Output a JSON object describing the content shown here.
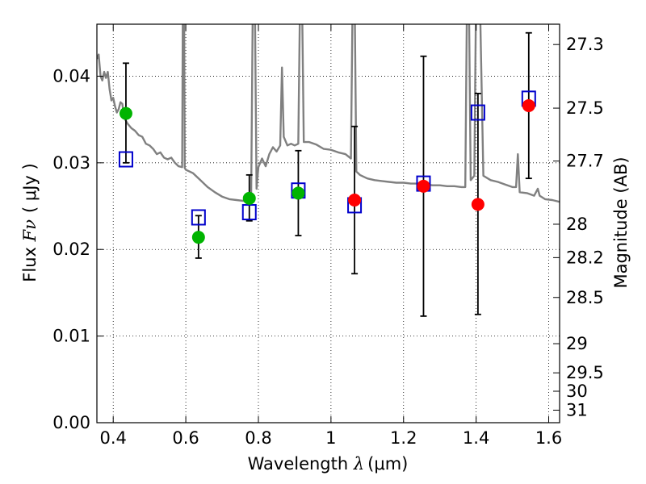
{
  "chart_data": {
    "type": "scatter",
    "title": "",
    "xlabel": {
      "prefix": "Wavelength ",
      "symbol": "λ",
      "unit": "(μm)"
    },
    "ylabel": {
      "prefix": "Flux ",
      "symbol": "Fν",
      "unit": "( μJy )"
    },
    "y2label": "Magnitude (AB)",
    "xlim": [
      0.355,
      1.63
    ],
    "ylim": [
      0.0,
      0.046
    ],
    "grid": true,
    "x_ticks": [
      {
        "value": 0.4,
        "label": "0.4"
      },
      {
        "value": 0.6,
        "label": "0.6"
      },
      {
        "value": 0.8,
        "label": "0.8"
      },
      {
        "value": 1.0,
        "label": "1"
      },
      {
        "value": 1.2,
        "label": "1.2"
      },
      {
        "value": 1.4,
        "label": "1.4"
      },
      {
        "value": 1.6,
        "label": "1.6"
      }
    ],
    "y_ticks": [
      {
        "value": 0.0,
        "label": "0.00"
      },
      {
        "value": 0.01,
        "label": "0.01"
      },
      {
        "value": 0.02,
        "label": "0.02"
      },
      {
        "value": 0.03,
        "label": "0.03"
      },
      {
        "value": 0.04,
        "label": "0.04"
      }
    ],
    "mag_ticks": [
      {
        "value": 27.3,
        "label": "27.3"
      },
      {
        "value": 27.5,
        "label": "27.5"
      },
      {
        "value": 27.7,
        "label": "27.7"
      },
      {
        "value": 28.0,
        "label": "28"
      },
      {
        "value": 28.2,
        "label": "28.2"
      },
      {
        "value": 28.5,
        "label": "28.5"
      },
      {
        "value": 29.0,
        "label": "29"
      },
      {
        "value": 29.5,
        "label": "29.5"
      },
      {
        "value": 30.0,
        "label": "30"
      },
      {
        "value": 31.0,
        "label": "31"
      }
    ],
    "series": [
      {
        "marker": "square-open",
        "color": "#0000cc",
        "points": [
          {
            "x": 0.435,
            "y": 0.0304
          },
          {
            "x": 0.635,
            "y": 0.0237
          },
          {
            "x": 0.775,
            "y": 0.0243
          },
          {
            "x": 0.91,
            "y": 0.0268
          },
          {
            "x": 1.065,
            "y": 0.0251
          },
          {
            "x": 1.255,
            "y": 0.0276
          },
          {
            "x": 1.405,
            "y": 0.0358
          },
          {
            "x": 1.545,
            "y": 0.0374
          }
        ]
      },
      {
        "marker": "circle",
        "color": "#00b400",
        "points": [
          {
            "x": 0.435,
            "y": 0.0357,
            "err": [
              0.03,
              0.0415
            ]
          },
          {
            "x": 0.635,
            "y": 0.0214,
            "err": [
              0.019,
              0.0239
            ]
          },
          {
            "x": 0.775,
            "y": 0.0259,
            "err": [
              0.0233,
              0.0286
            ]
          },
          {
            "x": 0.91,
            "y": 0.0265,
            "err": [
              0.0216,
              0.0314
            ]
          }
        ]
      },
      {
        "marker": "circle",
        "color": "#ff0000",
        "points": [
          {
            "x": 1.065,
            "y": 0.0257,
            "err": [
              0.0172,
              0.0342
            ]
          },
          {
            "x": 1.255,
            "y": 0.0273,
            "err": [
              0.0123,
              0.0423
            ]
          },
          {
            "x": 1.405,
            "y": 0.0252,
            "err": [
              0.0125,
              0.038
            ]
          },
          {
            "x": 1.545,
            "y": 0.0366,
            "err": [
              0.0282,
              0.045
            ]
          }
        ]
      }
    ],
    "spectrum": {
      "color": "#808080",
      "points": [
        [
          0.355,
          0.042
        ],
        [
          0.36,
          0.0425
        ],
        [
          0.365,
          0.04
        ],
        [
          0.37,
          0.0395
        ],
        [
          0.375,
          0.0405
        ],
        [
          0.38,
          0.0398
        ],
        [
          0.385,
          0.0405
        ],
        [
          0.39,
          0.0385
        ],
        [
          0.395,
          0.0372
        ],
        [
          0.4,
          0.0375
        ],
        [
          0.405,
          0.0365
        ],
        [
          0.41,
          0.0358
        ],
        [
          0.415,
          0.0362
        ],
        [
          0.42,
          0.037
        ],
        [
          0.425,
          0.0368
        ],
        [
          0.43,
          0.0352
        ],
        [
          0.44,
          0.0345
        ],
        [
          0.45,
          0.034
        ],
        [
          0.46,
          0.0337
        ],
        [
          0.47,
          0.0332
        ],
        [
          0.48,
          0.033
        ],
        [
          0.49,
          0.0322
        ],
        [
          0.5,
          0.032
        ],
        [
          0.51,
          0.0316
        ],
        [
          0.52,
          0.031
        ],
        [
          0.53,
          0.0312
        ],
        [
          0.54,
          0.0306
        ],
        [
          0.55,
          0.0304
        ],
        [
          0.56,
          0.0306
        ],
        [
          0.57,
          0.03
        ],
        [
          0.58,
          0.0296
        ],
        [
          0.59,
          0.0295
        ],
        [
          0.592,
          0.05
        ],
        [
          0.595,
          0.05
        ],
        [
          0.597,
          0.0294
        ],
        [
          0.6,
          0.0292
        ],
        [
          0.62,
          0.0288
        ],
        [
          0.64,
          0.028
        ],
        [
          0.66,
          0.0272
        ],
        [
          0.68,
          0.0266
        ],
        [
          0.7,
          0.0261
        ],
        [
          0.72,
          0.0258
        ],
        [
          0.74,
          0.0257
        ],
        [
          0.76,
          0.0256
        ],
        [
          0.77,
          0.0256
        ],
        [
          0.78,
          0.0258
        ],
        [
          0.785,
          0.05
        ],
        [
          0.79,
          0.05
        ],
        [
          0.795,
          0.027
        ],
        [
          0.8,
          0.0295
        ],
        [
          0.81,
          0.0305
        ],
        [
          0.82,
          0.0296
        ],
        [
          0.83,
          0.031
        ],
        [
          0.84,
          0.0318
        ],
        [
          0.85,
          0.0313
        ],
        [
          0.86,
          0.032
        ],
        [
          0.865,
          0.041
        ],
        [
          0.87,
          0.033
        ],
        [
          0.88,
          0.032
        ],
        [
          0.89,
          0.0322
        ],
        [
          0.9,
          0.032
        ],
        [
          0.91,
          0.0322
        ],
        [
          0.915,
          0.05
        ],
        [
          0.92,
          0.05
        ],
        [
          0.925,
          0.0324
        ],
        [
          0.94,
          0.0324
        ],
        [
          0.96,
          0.0321
        ],
        [
          0.98,
          0.0316
        ],
        [
          1.0,
          0.0315
        ],
        [
          1.02,
          0.0312
        ],
        [
          1.04,
          0.031
        ],
        [
          1.055,
          0.0305
        ],
        [
          1.06,
          0.05
        ],
        [
          1.065,
          0.05
        ],
        [
          1.07,
          0.029
        ],
        [
          1.08,
          0.0286
        ],
        [
          1.1,
          0.0282
        ],
        [
          1.12,
          0.028
        ],
        [
          1.14,
          0.0279
        ],
        [
          1.16,
          0.0278
        ],
        [
          1.18,
          0.0277
        ],
        [
          1.2,
          0.0277
        ],
        [
          1.22,
          0.0276
        ],
        [
          1.24,
          0.0276
        ],
        [
          1.26,
          0.0275
        ],
        [
          1.28,
          0.0274
        ],
        [
          1.3,
          0.0274
        ],
        [
          1.32,
          0.0273
        ],
        [
          1.34,
          0.0273
        ],
        [
          1.36,
          0.0272
        ],
        [
          1.37,
          0.0272
        ],
        [
          1.375,
          0.05
        ],
        [
          1.38,
          0.05
        ],
        [
          1.385,
          0.028
        ],
        [
          1.395,
          0.0285
        ],
        [
          1.4,
          0.05
        ],
        [
          1.41,
          0.05
        ],
        [
          1.42,
          0.0285
        ],
        [
          1.44,
          0.028
        ],
        [
          1.46,
          0.0278
        ],
        [
          1.48,
          0.0275
        ],
        [
          1.5,
          0.0272
        ],
        [
          1.51,
          0.0272
        ],
        [
          1.515,
          0.031
        ],
        [
          1.52,
          0.0266
        ],
        [
          1.54,
          0.0265
        ],
        [
          1.56,
          0.0262
        ],
        [
          1.57,
          0.027
        ],
        [
          1.575,
          0.0262
        ],
        [
          1.59,
          0.0258
        ],
        [
          1.61,
          0.0257
        ],
        [
          1.63,
          0.0255
        ]
      ]
    }
  }
}
